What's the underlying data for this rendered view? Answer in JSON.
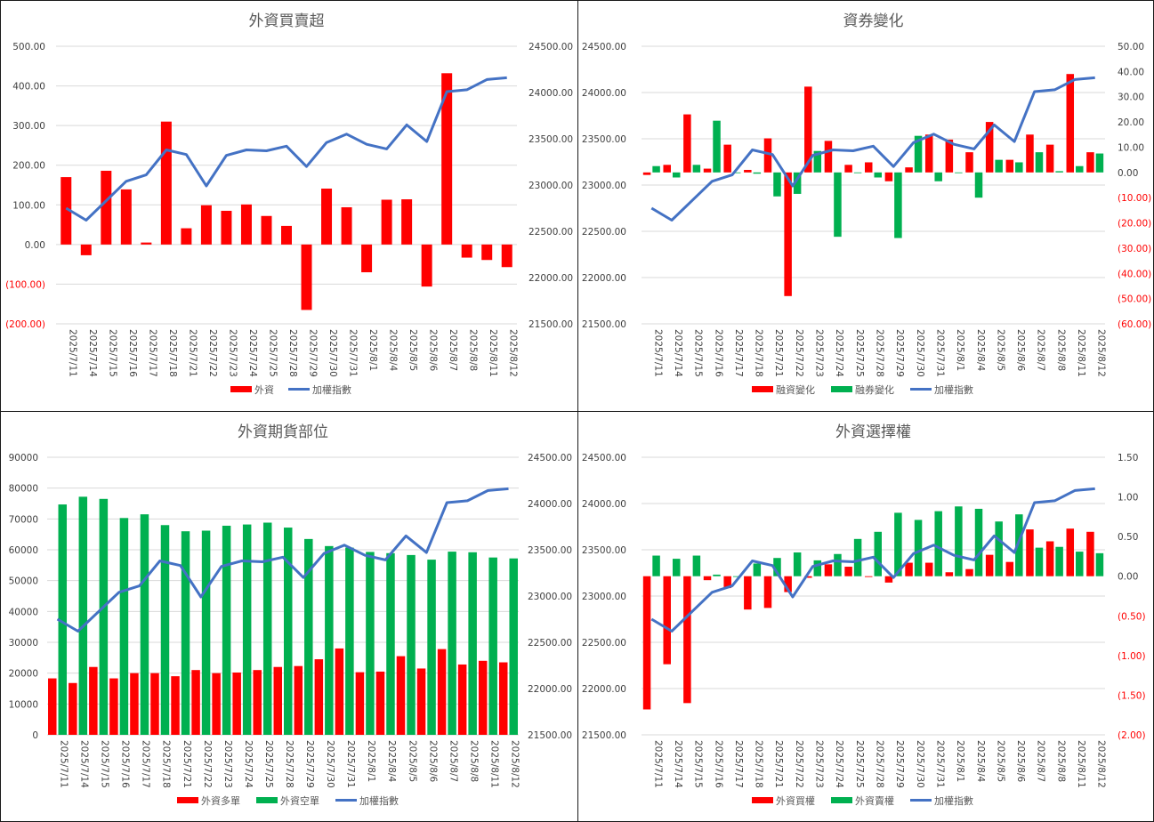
{
  "chart_data": [
    {
      "type": "bar",
      "title": "外資買賣超",
      "categories": [
        "2025/7/11",
        "2025/7/14",
        "2025/7/15",
        "2025/7/16",
        "2025/7/17",
        "2025/7/18",
        "2025/7/21",
        "2025/7/22",
        "2025/7/23",
        "2025/7/24",
        "2025/7/25",
        "2025/7/28",
        "2025/7/29",
        "2025/7/30",
        "2025/7/31",
        "2025/8/1",
        "2025/8/4",
        "2025/8/5",
        "2025/8/6",
        "2025/8/7",
        "2025/8/8",
        "2025/8/11",
        "2025/8/12"
      ],
      "series": [
        {
          "name": "外資",
          "type": "bar",
          "axis": "left",
          "color": "#ff0000",
          "values": [
            170,
            -27,
            186,
            139,
            5,
            310,
            41,
            99,
            85,
            101,
            72,
            47,
            -165,
            141,
            94,
            -70,
            113,
            114,
            -106,
            432,
            -33,
            -39,
            -57
          ]
        },
        {
          "name": "加權指數",
          "type": "line",
          "axis": "right",
          "color": "#4472c4",
          "values": [
            22750,
            22620,
            22830,
            23040,
            23110,
            23380,
            23330,
            22990,
            23320,
            23380,
            23370,
            23420,
            23200,
            23460,
            23550,
            23440,
            23390,
            23650,
            23470,
            24010,
            24030,
            24140,
            24160
          ]
        }
      ],
      "yleft": {
        "min": -200,
        "max": 500,
        "step": 100,
        "ticks": [
          "(200.00)",
          "(100.00)",
          "0.00",
          "100.00",
          "200.00",
          "300.00",
          "400.00",
          "500.00"
        ]
      },
      "yright": {
        "min": 21500,
        "max": 24500,
        "step": 500,
        "ticks": [
          "21500.00",
          "22000.00",
          "22500.00",
          "23000.00",
          "23500.00",
          "24000.00",
          "24500.00"
        ]
      },
      "legend": [
        "外資",
        "加權指數"
      ]
    },
    {
      "type": "bar",
      "title": "資券變化",
      "categories": [
        "2025/7/11",
        "2025/7/14",
        "2025/7/15",
        "2025/7/16",
        "2025/7/17",
        "2025/7/18",
        "2025/7/21",
        "2025/7/22",
        "2025/7/23",
        "2025/7/24",
        "2025/7/25",
        "2025/7/28",
        "2025/7/29",
        "2025/7/30",
        "2025/7/31",
        "2025/8/1",
        "2025/8/4",
        "2025/8/5",
        "2025/8/6",
        "2025/8/7",
        "2025/8/8",
        "2025/8/11",
        "2025/8/12"
      ],
      "series": [
        {
          "name": "融資變化",
          "type": "bar",
          "axis": "right",
          "color": "#ff0000",
          "values": [
            -1,
            3,
            23,
            1.5,
            11,
            1,
            13.5,
            -49,
            34,
            12.5,
            3,
            4,
            -3.5,
            2,
            15,
            13,
            8,
            20,
            5,
            15,
            11,
            39,
            8
          ]
        },
        {
          "name": "融券變化",
          "type": "bar",
          "axis": "right",
          "color": "#00b050",
          "values": [
            2.5,
            -2,
            3,
            20.5,
            0,
            -0.5,
            -9.5,
            -8.5,
            8.5,
            -25.5,
            0,
            -2,
            -26,
            14.5,
            -3.5,
            0,
            -10,
            5,
            4,
            8,
            0.5,
            2.5,
            7.5
          ]
        },
        {
          "name": "加權指數",
          "type": "line",
          "axis": "left",
          "color": "#4472c4",
          "values": [
            22750,
            22620,
            22830,
            23040,
            23110,
            23380,
            23330,
            22990,
            23320,
            23380,
            23370,
            23420,
            23200,
            23460,
            23550,
            23440,
            23390,
            23650,
            23470,
            24010,
            24030,
            24140,
            24160
          ]
        }
      ],
      "yleft": {
        "min": 21500,
        "max": 24500,
        "step": 500,
        "ticks": [
          "21500.00",
          "22000.00",
          "22500.00",
          "23000.00",
          "23500.00",
          "24000.00",
          "24500.00"
        ]
      },
      "yright": {
        "min": -60,
        "max": 50,
        "step": 10,
        "ticks": [
          "(60.00)",
          "(50.00)",
          "(40.00)",
          "(30.00)",
          "(20.00)",
          "(10.00)",
          "0.00",
          "10.00",
          "20.00",
          "30.00",
          "40.00",
          "50.00"
        ]
      },
      "legend": [
        "融資變化",
        "融券變化",
        "加權指數"
      ]
    },
    {
      "type": "bar",
      "title": "外資期貨部位",
      "categories": [
        "2025/7/11",
        "2025/7/14",
        "2025/7/15",
        "2025/7/16",
        "2025/7/17",
        "2025/7/18",
        "2025/7/21",
        "2025/7/22",
        "2025/7/23",
        "2025/7/24",
        "2025/7/25",
        "2025/7/28",
        "2025/7/29",
        "2025/7/30",
        "2025/7/31",
        "2025/8/1",
        "2025/8/4",
        "2025/8/5",
        "2025/8/6",
        "2025/8/7",
        "2025/8/8",
        "2025/8/11",
        "2025/8/12"
      ],
      "series": [
        {
          "name": "外資多單",
          "type": "bar",
          "axis": "left",
          "color": "#ff0000",
          "values": [
            18300,
            16800,
            22000,
            18300,
            20000,
            20000,
            19000,
            21000,
            20000,
            20200,
            21000,
            22000,
            22300,
            24500,
            28000,
            20300,
            20500,
            25500,
            21500,
            27800,
            22800,
            24000,
            23500
          ]
        },
        {
          "name": "外資空單",
          "type": "bar",
          "axis": "left",
          "color": "#00b050",
          "values": [
            74700,
            77200,
            76500,
            70300,
            71500,
            68000,
            66000,
            66200,
            67800,
            68200,
            68800,
            67200,
            63500,
            61200,
            60700,
            59300,
            58900,
            58300,
            56800,
            59400,
            59200,
            57500,
            57200
          ]
        },
        {
          "name": "加權指數",
          "type": "line",
          "axis": "right",
          "color": "#4472c4",
          "values": [
            22750,
            22620,
            22830,
            23040,
            23110,
            23380,
            23330,
            22990,
            23320,
            23380,
            23370,
            23420,
            23200,
            23460,
            23550,
            23440,
            23390,
            23650,
            23470,
            24010,
            24030,
            24140,
            24160
          ]
        }
      ],
      "yleft": {
        "min": 0,
        "max": 90000,
        "step": 10000,
        "ticks": [
          "0",
          "10000",
          "20000",
          "30000",
          "40000",
          "50000",
          "60000",
          "70000",
          "80000",
          "90000"
        ]
      },
      "yright": {
        "min": 21500,
        "max": 24500,
        "step": 500,
        "ticks": [
          "21500.00",
          "22000.00",
          "22500.00",
          "23000.00",
          "23500.00",
          "24000.00",
          "24500.00"
        ]
      },
      "legend": [
        "外資多單",
        "外資空單",
        "加權指數"
      ]
    },
    {
      "type": "bar",
      "title": "外資選擇權",
      "categories": [
        "2025/7/11",
        "2025/7/14",
        "2025/7/15",
        "2025/7/16",
        "2025/7/17",
        "2025/7/18",
        "2025/7/21",
        "2025/7/22",
        "2025/7/23",
        "2025/7/24",
        "2025/7/25",
        "2025/7/28",
        "2025/7/29",
        "2025/7/30",
        "2025/7/31",
        "2025/8/1",
        "2025/8/4",
        "2025/8/5",
        "2025/8/6",
        "2025/8/7",
        "2025/8/8",
        "2025/8/11",
        "2025/8/12"
      ],
      "series": [
        {
          "name": "外資買權",
          "type": "bar",
          "axis": "right",
          "color": "#ff0000",
          "values": [
            -1.68,
            -1.11,
            -1.6,
            -0.05,
            -0.15,
            -0.42,
            -0.4,
            -0.2,
            -0.02,
            0.15,
            0.12,
            -0.01,
            -0.08,
            0.17,
            0.17,
            0.05,
            0.09,
            0.27,
            0.18,
            0.59,
            0.44,
            0.6,
            0.56
          ]
        },
        {
          "name": "外資賣權",
          "type": "bar",
          "axis": "right",
          "color": "#00b050",
          "values": [
            0.26,
            0.22,
            0.26,
            0.02,
            0,
            0.16,
            0.23,
            0.3,
            0.2,
            0.28,
            0.47,
            0.56,
            0.8,
            0.71,
            0.82,
            0.88,
            0.85,
            0.69,
            0.78,
            0.36,
            0.37,
            0.31,
            0.29
          ]
        },
        {
          "name": "加權指數",
          "type": "line",
          "axis": "left",
          "color": "#4472c4",
          "values": [
            22750,
            22620,
            22830,
            23040,
            23110,
            23380,
            23330,
            22990,
            23320,
            23380,
            23370,
            23420,
            23200,
            23460,
            23550,
            23440,
            23390,
            23650,
            23470,
            24010,
            24030,
            24140,
            24160
          ]
        }
      ],
      "yleft": {
        "min": 21500,
        "max": 24500,
        "step": 500,
        "ticks": [
          "21500.00",
          "22000.00",
          "22500.00",
          "23000.00",
          "23500.00",
          "24000.00",
          "24500.00"
        ]
      },
      "yright": {
        "min": -2,
        "max": 1.5,
        "step": 0.5,
        "ticks": [
          "(2.00)",
          "(1.50)",
          "(1.00)",
          "(0.50)",
          "0.00",
          "0.50",
          "1.00",
          "1.50"
        ]
      },
      "legend": [
        "外資買權",
        "外資賣權",
        "加權指數"
      ]
    }
  ]
}
